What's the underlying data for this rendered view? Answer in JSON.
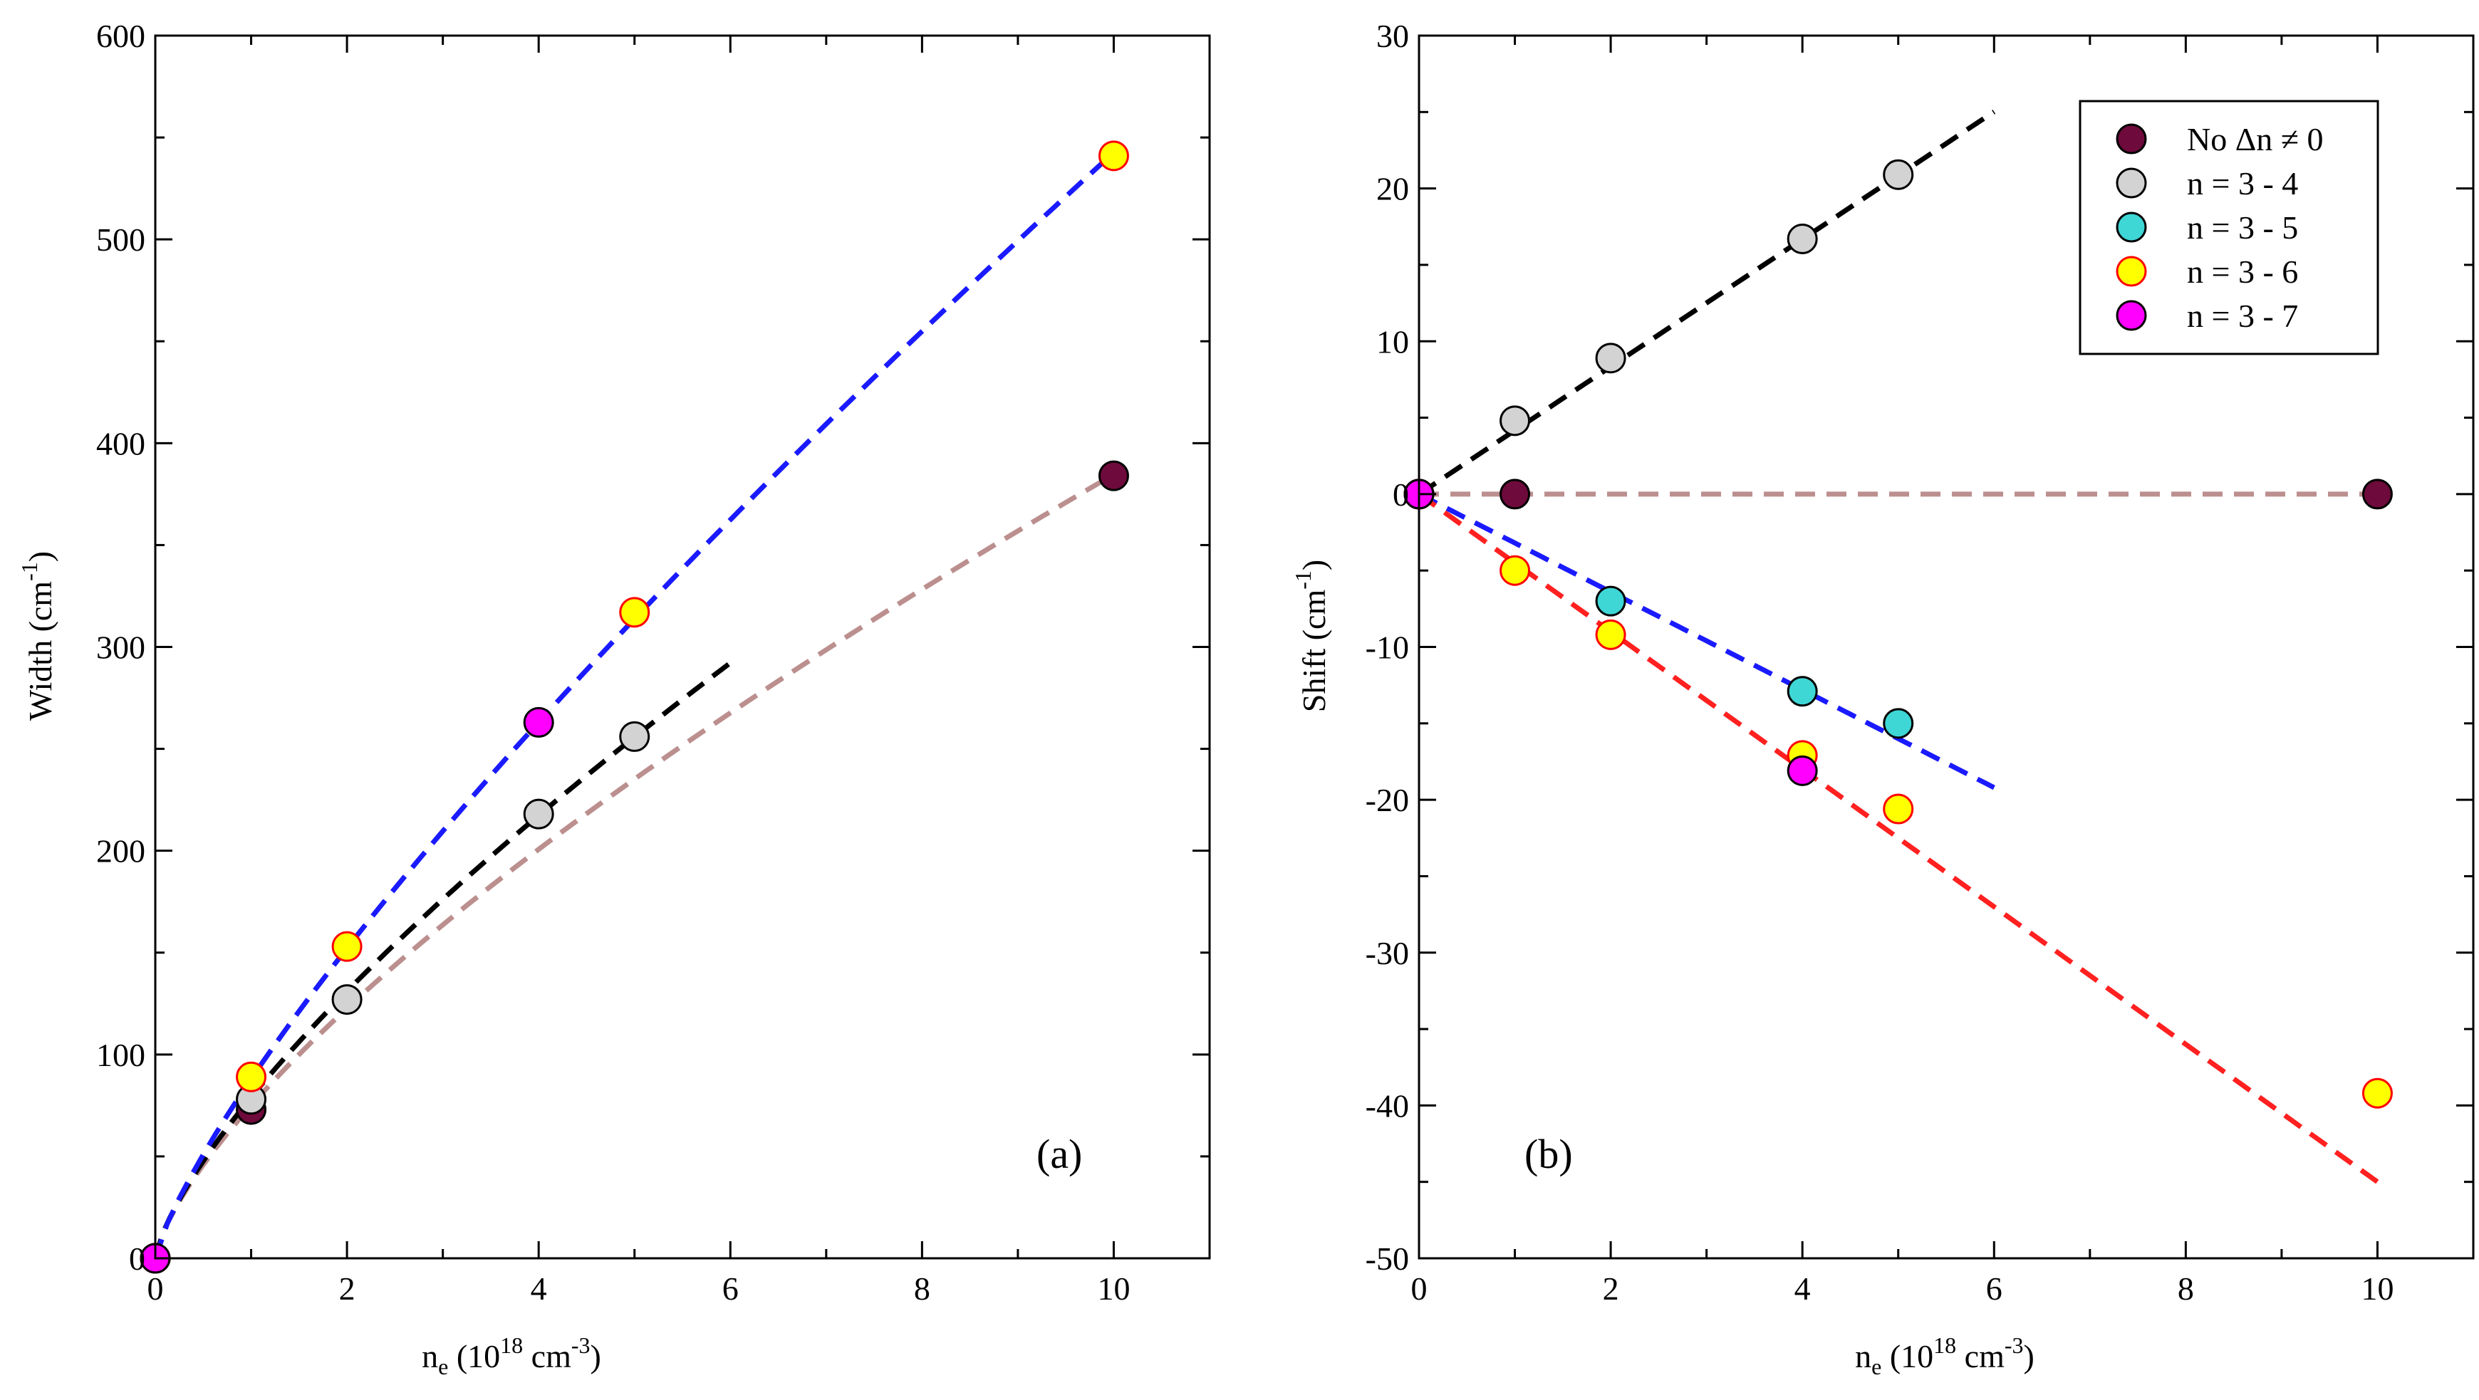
{
  "colors": {
    "no_dn": "#6e0a3c",
    "n34": "#d3d3d3",
    "n35": "#3fd6d6",
    "n36": "#ffff00",
    "n37": "#ff00ff",
    "marker_edge": "#000000",
    "marker_edge_red": "#ff0000",
    "fit_blue": "#1a1aff",
    "fit_black": "#000000",
    "fit_brown": "#bc8f8f",
    "fit_red": "#ff2020"
  },
  "legend": {
    "items": [
      {
        "key": "no_dn",
        "label": "No Δn ≠ 0"
      },
      {
        "key": "n34",
        "label": "n = 3 - 4"
      },
      {
        "key": "n35",
        "label": "n = 3 - 5"
      },
      {
        "key": "n36",
        "label": "n = 3 - 6"
      },
      {
        "key": "n37",
        "label": "n = 3 - 7"
      }
    ]
  },
  "chart_data": [
    {
      "id": "a",
      "type": "scatter",
      "panel_label": "(a)",
      "xlabel_main": "n",
      "xlabel_sub": "e",
      "xlabel_rest": " (10",
      "xlabel_sup": "18",
      "xlabel_unit": " cm",
      "xlabel_unit_sup": "-3",
      "xlabel_close": ")",
      "ylabel_main": "Width (cm",
      "ylabel_sup": "-1",
      "ylabel_close": ")",
      "xlim": [
        0,
        11
      ],
      "ylim": [
        0,
        600
      ],
      "xticks": [
        0,
        2,
        4,
        6,
        8,
        10
      ],
      "xtick_labels": [
        "0",
        "2",
        "4",
        "6",
        "8",
        "10"
      ],
      "yticks": [
        0,
        100,
        200,
        300,
        400,
        500,
        600
      ],
      "ytick_labels": [
        "0",
        "100",
        "200",
        "300",
        "400",
        "500",
        "600"
      ],
      "series": [
        {
          "key": "no_dn",
          "name": "No Δn ≠ 0",
          "points": [
            [
              0,
              0
            ],
            [
              1,
              73
            ],
            [
              10,
              384
            ]
          ]
        },
        {
          "key": "n34",
          "name": "n = 3 - 4",
          "points": [
            [
              0,
              0
            ],
            [
              1,
              78
            ],
            [
              2,
              127
            ],
            [
              4,
              218
            ],
            [
              5,
              256
            ]
          ]
        },
        {
          "key": "n35",
          "name": "n = 3 - 5",
          "points": []
        },
        {
          "key": "n36",
          "name": "n = 3 - 6",
          "points": [
            [
              0,
              0
            ],
            [
              1,
              89
            ],
            [
              2,
              153
            ],
            [
              5,
              317
            ],
            [
              10,
              541
            ]
          ]
        },
        {
          "key": "n37",
          "name": "n = 3 - 7",
          "points": [
            [
              0,
              0
            ],
            [
              4,
              263
            ]
          ]
        }
      ],
      "fits": [
        {
          "key": "fit_brown",
          "model": "power",
          "a": 75,
          "b": 0.71,
          "x_range": [
            0,
            10
          ]
        },
        {
          "key": "fit_black",
          "model": "power",
          "a": 79,
          "b": 0.73,
          "x_range": [
            0,
            6
          ]
        },
        {
          "key": "fit_blue",
          "model": "power",
          "a": 88,
          "b": 0.79,
          "x_range": [
            0,
            10
          ]
        }
      ]
    },
    {
      "id": "b",
      "type": "scatter",
      "panel_label": "(b)",
      "xlabel_main": "n",
      "xlabel_sub": "e",
      "xlabel_rest": " (10",
      "xlabel_sup": "18",
      "xlabel_unit": " cm",
      "xlabel_unit_sup": "-3",
      "xlabel_close": ")",
      "ylabel_main": "Shift (cm",
      "ylabel_sup": "-1",
      "ylabel_close": ")",
      "xlim": [
        0,
        11
      ],
      "ylim": [
        -50,
        30
      ],
      "xticks": [
        0,
        2,
        4,
        6,
        8,
        10
      ],
      "xtick_labels": [
        "0",
        "2",
        "4",
        "6",
        "8",
        "10"
      ],
      "yticks": [
        -50,
        -40,
        -30,
        -20,
        -10,
        0,
        10,
        20,
        30
      ],
      "ytick_labels": [
        "-50",
        "-40",
        "-30",
        "-20",
        "-10",
        "0",
        "10",
        "20",
        "30"
      ],
      "series": [
        {
          "key": "no_dn",
          "name": "No Δn ≠ 0",
          "points": [
            [
              0,
              0
            ],
            [
              1,
              0
            ],
            [
              10,
              0
            ]
          ]
        },
        {
          "key": "n34",
          "name": "n = 3 - 4",
          "points": [
            [
              0,
              0
            ],
            [
              1,
              4.8
            ],
            [
              2,
              8.9
            ],
            [
              4,
              16.7
            ],
            [
              5,
              20.9
            ]
          ]
        },
        {
          "key": "n35",
          "name": "n = 3 - 5",
          "points": [
            [
              0,
              0
            ],
            [
              2,
              -7
            ],
            [
              4,
              -12.9
            ],
            [
              5,
              -15
            ]
          ]
        },
        {
          "key": "n36",
          "name": "n = 3 - 6",
          "points": [
            [
              0,
              0
            ],
            [
              1,
              -5
            ],
            [
              2,
              -9.2
            ],
            [
              4,
              -17.1
            ],
            [
              5,
              -20.6
            ],
            [
              10,
              -39.2
            ]
          ]
        },
        {
          "key": "n37",
          "name": "n = 3 - 7",
          "points": [
            [
              0,
              0
            ],
            [
              4,
              -18.1
            ]
          ]
        }
      ],
      "fits": [
        {
          "key": "fit_brown",
          "model": "linear",
          "slope": 0,
          "x_range": [
            0,
            10
          ]
        },
        {
          "key": "fit_black",
          "model": "linear",
          "slope": 4.17,
          "x_range": [
            0,
            6
          ]
        },
        {
          "key": "fit_blue",
          "model": "linear",
          "slope": -3.2,
          "x_range": [
            0,
            6
          ]
        },
        {
          "key": "fit_red",
          "model": "linear",
          "slope": -4.5,
          "x_range": [
            0,
            10
          ]
        }
      ]
    }
  ]
}
